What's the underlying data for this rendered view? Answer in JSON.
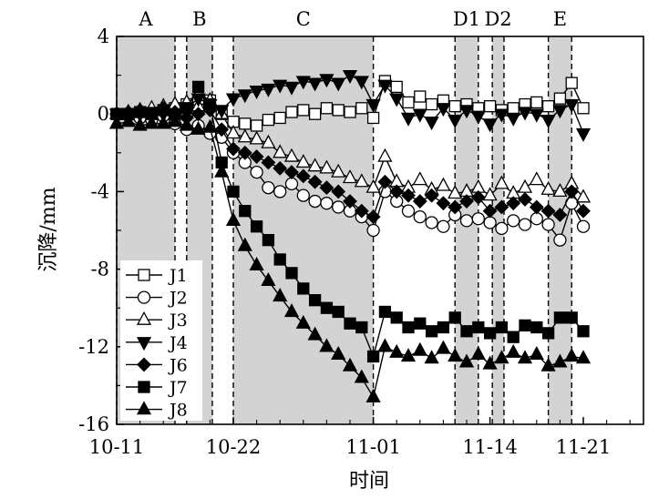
{
  "chart_data": {
    "type": "line",
    "xlabel": "时间",
    "ylabel": "沉降/mm",
    "x_ticks": [
      "10-11",
      "10-22",
      "11-01",
      "11-14",
      "11-21"
    ],
    "y_ticks": [
      "4",
      "0",
      "-4",
      "-8",
      "-12",
      "-16"
    ],
    "ylim": [
      -16,
      4
    ],
    "grid": false,
    "legend": "bottom-left",
    "construction_stages": [
      {
        "label": "A",
        "x_start": 0.0,
        "x_end": 2.5
      },
      {
        "label": "B",
        "x_start": 3.0,
        "x_end": 4.1
      },
      {
        "label": "C",
        "x_start": 5.0,
        "x_end": 11.0
      },
      {
        "label": "D1",
        "x_start": 14.5,
        "x_end": 15.5
      },
      {
        "label": "D2",
        "x_start": 16.1,
        "x_end": 16.6
      },
      {
        "label": "E",
        "x_start": 18.5,
        "x_end": 19.5
      }
    ],
    "x_tick_positions": [
      0,
      5,
      11,
      16,
      20
    ],
    "series": [
      {
        "name": "J1",
        "marker": "open-square",
        "x": [
          0.0,
          0.5,
          1.0,
          1.5,
          2.0,
          2.5,
          3.0,
          3.5,
          4.0,
          4.5,
          5.0,
          5.5,
          6.0,
          6.5,
          7.0,
          7.5,
          8.0,
          8.5,
          9.0,
          9.5,
          10.0,
          10.5,
          11.0,
          11.5,
          12.0,
          12.5,
          13.0,
          13.5,
          14.0,
          14.5,
          15.0,
          15.5,
          16.0,
          16.5,
          17.0,
          17.5,
          18.0,
          18.5,
          19.0,
          19.5,
          20.0
        ],
        "values": [
          0.0,
          0.0,
          0.0,
          0.0,
          0.0,
          0.3,
          0.5,
          0.6,
          0.7,
          0.0,
          -0.4,
          -0.5,
          -0.6,
          -0.3,
          -0.2,
          0.1,
          0.2,
          0.0,
          0.3,
          0.2,
          0.1,
          0.3,
          -0.2,
          1.7,
          1.4,
          0.6,
          0.9,
          0.5,
          0.7,
          0.4,
          0.5,
          0.3,
          0.4,
          0.2,
          0.3,
          0.5,
          0.6,
          0.4,
          0.8,
          1.6,
          0.3
        ]
      },
      {
        "name": "J2",
        "marker": "open-circle",
        "x": [
          0.0,
          0.5,
          1.0,
          1.5,
          2.0,
          2.5,
          3.0,
          3.5,
          4.0,
          4.5,
          5.0,
          5.5,
          6.0,
          6.5,
          7.0,
          7.5,
          8.0,
          8.5,
          9.0,
          9.5,
          10.0,
          10.5,
          11.0,
          11.5,
          12.0,
          12.5,
          13.0,
          13.5,
          14.0,
          14.5,
          15.0,
          15.5,
          16.0,
          16.5,
          17.0,
          17.5,
          18.0,
          18.5,
          19.0,
          19.5,
          20.0
        ],
        "values": [
          0.0,
          0.0,
          -0.2,
          -0.3,
          -0.1,
          -0.5,
          -0.8,
          -0.6,
          -1.0,
          -1.2,
          -2.0,
          -2.5,
          -3.0,
          -3.8,
          -4.0,
          -3.6,
          -4.2,
          -4.5,
          -4.6,
          -4.8,
          -5.0,
          -5.3,
          -6.0,
          -4.0,
          -4.5,
          -5.0,
          -5.3,
          -5.6,
          -5.8,
          -5.2,
          -5.5,
          -5.4,
          -5.6,
          -5.9,
          -5.5,
          -5.7,
          -5.4,
          -5.7,
          -6.5,
          -4.6,
          -5.8
        ]
      },
      {
        "name": "J3",
        "marker": "open-triangle",
        "x": [
          0.0,
          0.5,
          1.0,
          1.5,
          2.0,
          2.5,
          3.0,
          3.5,
          4.0,
          4.5,
          5.0,
          5.5,
          6.0,
          6.5,
          7.0,
          7.5,
          8.0,
          8.5,
          9.0,
          9.5,
          10.0,
          10.5,
          11.0,
          11.5,
          12.0,
          12.5,
          13.0,
          13.5,
          14.0,
          14.5,
          15.0,
          15.5,
          16.0,
          16.5,
          17.0,
          17.5,
          18.0,
          18.5,
          19.0,
          19.5,
          20.0
        ],
        "values": [
          0.0,
          0.1,
          0.2,
          0.3,
          0.4,
          0.5,
          0.6,
          0.4,
          0.7,
          0.0,
          -1.0,
          -1.2,
          -1.3,
          -1.5,
          -2.0,
          -2.2,
          -2.5,
          -2.7,
          -2.8,
          -3.0,
          -3.3,
          -3.5,
          -3.8,
          -2.2,
          -3.5,
          -3.8,
          -3.4,
          -3.9,
          -3.7,
          -4.1,
          -4.0,
          -3.8,
          -4.2,
          -3.6,
          -4.1,
          -3.8,
          -3.4,
          -3.9,
          -4.0,
          -3.6,
          -4.3
        ]
      },
      {
        "name": "J4",
        "marker": "filled-inverted-triangle",
        "x": [
          0.0,
          0.5,
          1.0,
          1.5,
          2.0,
          2.5,
          3.0,
          3.5,
          4.0,
          4.5,
          5.0,
          5.5,
          6.0,
          6.5,
          7.0,
          7.5,
          8.0,
          8.5,
          9.0,
          9.5,
          10.0,
          10.5,
          11.0,
          11.5,
          12.0,
          12.5,
          13.0,
          13.5,
          14.0,
          14.5,
          15.0,
          15.5,
          16.0,
          16.5,
          17.0,
          17.5,
          18.0,
          18.5,
          19.0,
          19.5,
          20.0
        ],
        "values": [
          0.0,
          0.0,
          0.0,
          0.1,
          0.0,
          -0.2,
          0.3,
          0.8,
          0.5,
          0.2,
          0.8,
          1.0,
          1.2,
          1.3,
          1.5,
          1.4,
          1.7,
          1.6,
          1.8,
          1.6,
          2.0,
          1.7,
          0.5,
          1.5,
          0.8,
          -0.2,
          0.0,
          -0.4,
          0.3,
          -0.3,
          0.2,
          -0.1,
          -0.5,
          0.0,
          -0.2,
          0.1,
          0.0,
          -0.3,
          0.2,
          0.5,
          -1.0
        ]
      },
      {
        "name": "J6",
        "marker": "filled-diamond",
        "x": [
          0.0,
          0.5,
          1.0,
          1.5,
          2.0,
          2.5,
          3.0,
          3.5,
          4.0,
          4.5,
          5.0,
          5.5,
          6.0,
          6.5,
          7.0,
          7.5,
          8.0,
          8.5,
          9.0,
          9.5,
          10.0,
          10.5,
          11.0,
          11.5,
          12.0,
          12.5,
          13.0,
          13.5,
          14.0,
          14.5,
          15.0,
          15.5,
          16.0,
          16.5,
          17.0,
          17.5,
          18.0,
          18.5,
          19.0,
          19.5,
          20.0
        ],
        "values": [
          0.0,
          0.1,
          0.2,
          0.0,
          0.3,
          0.1,
          -0.2,
          0.0,
          0.2,
          -0.8,
          -1.8,
          -2.0,
          -2.2,
          -2.5,
          -2.8,
          -3.0,
          -3.2,
          -3.5,
          -3.8,
          -4.0,
          -4.5,
          -5.0,
          -5.3,
          -3.5,
          -4.0,
          -4.2,
          -4.5,
          -4.2,
          -4.6,
          -4.8,
          -4.5,
          -4.3,
          -5.0,
          -4.8,
          -4.6,
          -4.4,
          -4.8,
          -5.0,
          -5.2,
          -4.0,
          -5.0
        ]
      },
      {
        "name": "J7",
        "marker": "filled-square",
        "x": [
          0.0,
          0.5,
          1.0,
          1.5,
          2.0,
          2.5,
          3.0,
          3.5,
          4.0,
          4.5,
          5.0,
          5.5,
          6.0,
          6.5,
          7.0,
          7.5,
          8.0,
          8.5,
          9.0,
          9.5,
          10.0,
          10.5,
          11.0,
          11.5,
          12.0,
          12.5,
          13.0,
          13.5,
          14.0,
          14.5,
          15.0,
          15.5,
          16.0,
          16.5,
          17.0,
          17.5,
          18.0,
          18.5,
          19.0,
          19.5,
          20.0
        ],
        "values": [
          0.0,
          0.0,
          0.1,
          0.0,
          0.2,
          0.0,
          0.3,
          1.4,
          0.5,
          -2.5,
          -4.0,
          -5.0,
          -5.8,
          -6.5,
          -7.5,
          -8.2,
          -9.0,
          -9.6,
          -10.0,
          -10.2,
          -10.8,
          -11.0,
          -12.5,
          -10.2,
          -10.5,
          -11.0,
          -10.8,
          -11.2,
          -11.0,
          -10.5,
          -11.2,
          -11.0,
          -11.3,
          -11.0,
          -11.5,
          -10.9,
          -11.0,
          -11.3,
          -10.5,
          -10.5,
          -11.2
        ]
      },
      {
        "name": "J8",
        "marker": "filled-triangle",
        "x": [
          0.0,
          0.5,
          1.0,
          1.5,
          2.0,
          2.5,
          3.0,
          3.5,
          4.0,
          4.5,
          5.0,
          5.5,
          6.0,
          6.5,
          7.0,
          7.5,
          8.0,
          8.5,
          9.0,
          9.5,
          10.0,
          10.5,
          11.0,
          11.5,
          12.0,
          12.5,
          13.0,
          13.5,
          14.0,
          14.5,
          15.0,
          15.5,
          16.0,
          16.5,
          17.0,
          17.5,
          18.0,
          18.5,
          19.0,
          19.5,
          20.0
        ],
        "values": [
          -0.5,
          -0.4,
          -0.6,
          -0.5,
          -0.5,
          -0.4,
          -0.6,
          -0.8,
          -0.7,
          -3.0,
          -5.5,
          -6.8,
          -7.8,
          -8.6,
          -9.4,
          -10.2,
          -10.8,
          -11.4,
          -12.0,
          -12.4,
          -13.0,
          -13.6,
          -14.6,
          -12.0,
          -12.3,
          -12.5,
          -12.2,
          -12.6,
          -12.1,
          -12.5,
          -12.8,
          -12.4,
          -12.9,
          -12.6,
          -12.3,
          -12.6,
          -12.4,
          -13.0,
          -12.8,
          -12.5,
          -12.6
        ]
      }
    ]
  }
}
